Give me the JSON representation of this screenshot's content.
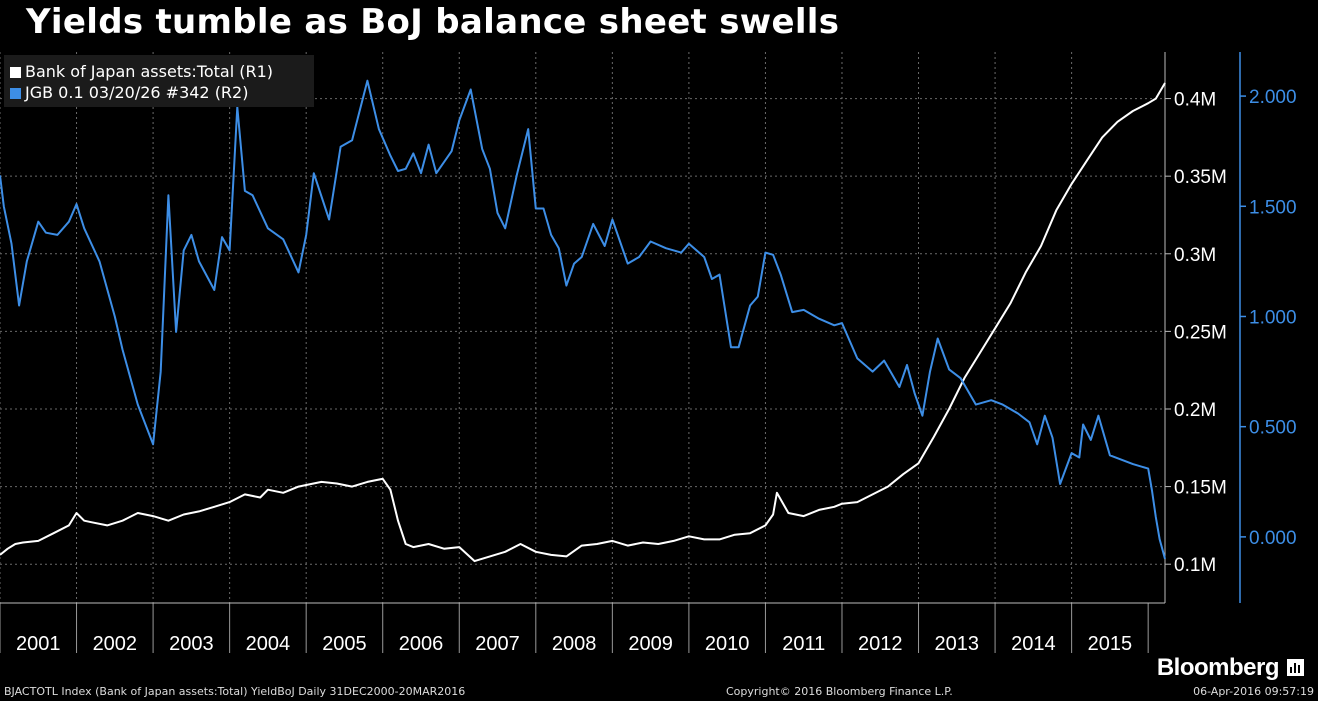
{
  "title": "Yields tumble as BoJ balance sheet swells",
  "legend": [
    {
      "label": "Bank of Japan assets:Total  (R1)",
      "color": "#ffffff"
    },
    {
      "label": "JGB 0.1 03/20/26 #342  (R2)",
      "color": "#3d8ee6"
    }
  ],
  "brand": "Bloomberg",
  "footer": {
    "source": "BJACTOTL Index (Bank of Japan assets:Total) YieldBoJ  Daily 31DEC2000-20MAR2016",
    "copyright": "Copyright© 2016 Bloomberg Finance L.P.",
    "timestamp": "06-Apr-2016 09:57:19"
  },
  "colors": {
    "background": "#000000",
    "assets": "#ffffff",
    "yield": "#3d8ee6",
    "grid": "#6a6a6a"
  },
  "chart_data": {
    "type": "line",
    "grid": true,
    "legend_position": "top-left",
    "x": {
      "ticks": [
        "2001",
        "2002",
        "2003",
        "2004",
        "2005",
        "2006",
        "2007",
        "2008",
        "2009",
        "2010",
        "2011",
        "2012",
        "2013",
        "2014",
        "2015"
      ],
      "range": [
        2001,
        2016.22
      ]
    },
    "y_left_axis": {
      "name": "R1",
      "ticks": [
        0.1,
        0.15,
        0.2,
        0.25,
        0.3,
        0.35,
        0.4
      ],
      "tick_labels": [
        "0.1M",
        "0.15M",
        "0.2M",
        "0.25M",
        "0.3M",
        "0.35M",
        "0.4M"
      ],
      "range": [
        0.075,
        0.43
      ]
    },
    "y_right_axis": {
      "name": "R2",
      "ticks": [
        0.0,
        0.5,
        1.0,
        1.5,
        2.0
      ],
      "tick_labels": [
        "0.000",
        "0.500",
        "1.000",
        "1.500",
        "2.000"
      ],
      "range": [
        -0.3,
        2.2
      ]
    },
    "series": [
      {
        "name": "Bank of Japan assets:Total",
        "axis": "R1",
        "color": "#ffffff",
        "x": [
          2001.0,
          2001.1,
          2001.2,
          2001.3,
          2001.5,
          2001.7,
          2001.9,
          2002.0,
          2002.1,
          2002.2,
          2002.4,
          2002.6,
          2002.8,
          2003.0,
          2003.2,
          2003.4,
          2003.6,
          2003.8,
          2004.0,
          2004.2,
          2004.4,
          2004.5,
          2004.7,
          2004.9,
          2005.0,
          2005.2,
          2005.4,
          2005.6,
          2005.8,
          2006.0,
          2006.1,
          2006.2,
          2006.3,
          2006.4,
          2006.6,
          2006.8,
          2007.0,
          2007.2,
          2007.4,
          2007.6,
          2007.8,
          2008.0,
          2008.2,
          2008.4,
          2008.6,
          2008.8,
          2009.0,
          2009.2,
          2009.4,
          2009.6,
          2009.8,
          2010.0,
          2010.2,
          2010.4,
          2010.6,
          2010.8,
          2011.0,
          2011.1,
          2011.15,
          2011.3,
          2011.5,
          2011.7,
          2011.9,
          2012.0,
          2012.2,
          2012.4,
          2012.6,
          2012.8,
          2013.0,
          2013.2,
          2013.4,
          2013.6,
          2013.8,
          2014.0,
          2014.2,
          2014.4,
          2014.6,
          2014.8,
          2015.0,
          2015.2,
          2015.4,
          2015.6,
          2015.8,
          2016.0,
          2016.1,
          2016.22
        ],
        "y": [
          0.106,
          0.11,
          0.113,
          0.114,
          0.115,
          0.12,
          0.125,
          0.133,
          0.128,
          0.127,
          0.125,
          0.128,
          0.133,
          0.131,
          0.128,
          0.132,
          0.134,
          0.137,
          0.14,
          0.145,
          0.143,
          0.148,
          0.146,
          0.15,
          0.151,
          0.153,
          0.152,
          0.15,
          0.153,
          0.155,
          0.148,
          0.128,
          0.113,
          0.111,
          0.113,
          0.11,
          0.111,
          0.102,
          0.105,
          0.108,
          0.113,
          0.108,
          0.106,
          0.105,
          0.112,
          0.113,
          0.115,
          0.112,
          0.114,
          0.113,
          0.115,
          0.118,
          0.116,
          0.116,
          0.119,
          0.12,
          0.125,
          0.132,
          0.146,
          0.133,
          0.131,
          0.135,
          0.137,
          0.139,
          0.14,
          0.145,
          0.15,
          0.158,
          0.165,
          0.182,
          0.2,
          0.22,
          0.236,
          0.252,
          0.268,
          0.288,
          0.305,
          0.328,
          0.345,
          0.36,
          0.375,
          0.385,
          0.392,
          0.397,
          0.4,
          0.41
        ]
      },
      {
        "name": "JGB 0.1 03/20/26 #342",
        "axis": "R2",
        "color": "#3d8ee6",
        "x": [
          2001.0,
          2001.05,
          2001.15,
          2001.25,
          2001.35,
          2001.5,
          2001.6,
          2001.75,
          2001.9,
          2002.0,
          2002.1,
          2002.3,
          2002.5,
          2002.6,
          2002.8,
          2003.0,
          2003.1,
          2003.2,
          2003.3,
          2003.4,
          2003.5,
          2003.6,
          2003.8,
          2003.9,
          2004.0,
          2004.1,
          2004.2,
          2004.3,
          2004.5,
          2004.7,
          2004.9,
          2005.0,
          2005.1,
          2005.3,
          2005.45,
          2005.6,
          2005.8,
          2005.95,
          2006.1,
          2006.2,
          2006.3,
          2006.4,
          2006.5,
          2006.6,
          2006.7,
          2006.9,
          2007.0,
          2007.15,
          2007.3,
          2007.4,
          2007.5,
          2007.6,
          2007.75,
          2007.9,
          2008.0,
          2008.1,
          2008.2,
          2008.3,
          2008.4,
          2008.5,
          2008.6,
          2008.75,
          2008.9,
          2009.0,
          2009.2,
          2009.35,
          2009.5,
          2009.7,
          2009.9,
          2010.0,
          2010.2,
          2010.3,
          2010.4,
          2010.55,
          2010.65,
          2010.8,
          2010.9,
          2011.0,
          2011.1,
          2011.2,
          2011.35,
          2011.5,
          2011.7,
          2011.9,
          2012.0,
          2012.2,
          2012.4,
          2012.55,
          2012.75,
          2012.85,
          2012.95,
          2013.05,
          2013.15,
          2013.25,
          2013.4,
          2013.55,
          2013.75,
          2013.95,
          2014.1,
          2014.3,
          2014.45,
          2014.55,
          2014.65,
          2014.75,
          2014.85,
          2015.0,
          2015.1,
          2015.15,
          2015.25,
          2015.35,
          2015.5,
          2015.65,
          2015.8,
          2016.0,
          2016.05,
          2016.1,
          2016.15,
          2016.22
        ],
        "y": [
          1.64,
          1.5,
          1.33,
          1.05,
          1.25,
          1.43,
          1.38,
          1.37,
          1.43,
          1.51,
          1.4,
          1.25,
          1.0,
          0.85,
          0.6,
          0.42,
          0.75,
          1.55,
          0.93,
          1.3,
          1.37,
          1.25,
          1.12,
          1.36,
          1.3,
          1.95,
          1.57,
          1.55,
          1.4,
          1.35,
          1.2,
          1.37,
          1.65,
          1.44,
          1.77,
          1.8,
          2.07,
          1.85,
          1.73,
          1.66,
          1.67,
          1.74,
          1.65,
          1.78,
          1.65,
          1.75,
          1.89,
          2.03,
          1.76,
          1.67,
          1.47,
          1.4,
          1.64,
          1.85,
          1.49,
          1.49,
          1.37,
          1.31,
          1.14,
          1.24,
          1.27,
          1.42,
          1.32,
          1.44,
          1.24,
          1.27,
          1.34,
          1.31,
          1.29,
          1.33,
          1.27,
          1.17,
          1.19,
          0.86,
          0.86,
          1.05,
          1.09,
          1.29,
          1.28,
          1.19,
          1.02,
          1.03,
          0.99,
          0.96,
          0.97,
          0.81,
          0.75,
          0.8,
          0.68,
          0.78,
          0.65,
          0.55,
          0.75,
          0.9,
          0.76,
          0.72,
          0.6,
          0.62,
          0.6,
          0.56,
          0.52,
          0.42,
          0.55,
          0.45,
          0.24,
          0.38,
          0.36,
          0.51,
          0.44,
          0.55,
          0.37,
          0.35,
          0.33,
          0.31,
          0.21,
          0.09,
          -0.01,
          -0.1
        ]
      }
    ]
  }
}
